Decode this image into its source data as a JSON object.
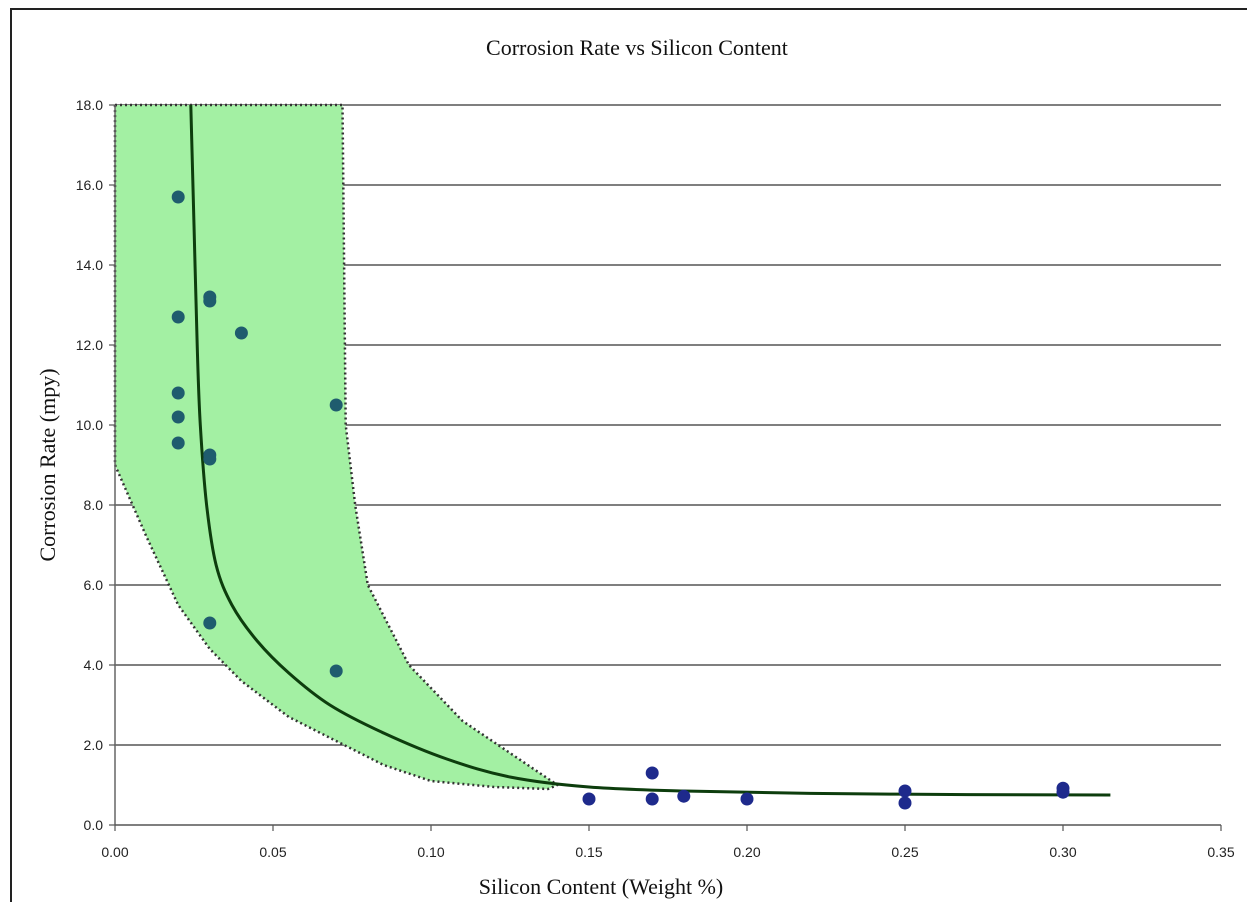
{
  "chart_data": {
    "type": "scatter",
    "title": "Corrosion Rate vs Silicon Content",
    "xlabel": "Silicon Content (Weight %)",
    "ylabel": "Corrosion Rate (mpy)",
    "xlim": [
      0,
      0.35
    ],
    "ylim": [
      0,
      18
    ],
    "x_ticks": [
      0.0,
      0.05,
      0.1,
      0.15,
      0.2,
      0.25,
      0.3,
      0.35
    ],
    "y_ticks": [
      0,
      2,
      4,
      6,
      8,
      10,
      12,
      14,
      16,
      18
    ],
    "x_tick_labels": [
      "0.00",
      "0.05",
      "0.10",
      "0.15",
      "0.20",
      "0.25",
      "0.30",
      "0.35"
    ],
    "y_tick_labels": [
      "0.0",
      "2.0",
      "4.0",
      "6.0",
      "8.0",
      "10.0",
      "12.0",
      "14.0",
      "16.0",
      "18.0"
    ],
    "grid": {
      "horizontal": true,
      "vertical": false
    },
    "colors": {
      "points_band": "#1f5c6e",
      "points_low": "#1e2a8c",
      "curve": "#0d3d0d",
      "band_fill": "#a3f0a3",
      "band_edge": "#333333",
      "gridline": "#555555"
    },
    "points": [
      {
        "x": 0.02,
        "y": 15.7
      },
      {
        "x": 0.02,
        "y": 12.7
      },
      {
        "x": 0.02,
        "y": 10.8
      },
      {
        "x": 0.02,
        "y": 10.2
      },
      {
        "x": 0.02,
        "y": 9.55
      },
      {
        "x": 0.03,
        "y": 13.2
      },
      {
        "x": 0.03,
        "y": 13.1
      },
      {
        "x": 0.03,
        "y": 9.25
      },
      {
        "x": 0.03,
        "y": 9.15
      },
      {
        "x": 0.03,
        "y": 5.05
      },
      {
        "x": 0.04,
        "y": 12.3
      },
      {
        "x": 0.07,
        "y": 10.5
      },
      {
        "x": 0.07,
        "y": 3.85
      },
      {
        "x": 0.15,
        "y": 0.65
      },
      {
        "x": 0.17,
        "y": 1.3
      },
      {
        "x": 0.17,
        "y": 0.65
      },
      {
        "x": 0.18,
        "y": 0.72
      },
      {
        "x": 0.2,
        "y": 0.65
      },
      {
        "x": 0.25,
        "y": 0.85
      },
      {
        "x": 0.25,
        "y": 0.55
      },
      {
        "x": 0.3,
        "y": 0.92
      },
      {
        "x": 0.3,
        "y": 0.82
      }
    ],
    "trend_curve": [
      {
        "x": 0.024,
        "y": 18.0
      },
      {
        "x": 0.025,
        "y": 15.0
      },
      {
        "x": 0.026,
        "y": 12.0
      },
      {
        "x": 0.027,
        "y": 10.0
      },
      {
        "x": 0.029,
        "y": 8.0
      },
      {
        "x": 0.032,
        "y": 6.5
      },
      {
        "x": 0.037,
        "y": 5.5
      },
      {
        "x": 0.045,
        "y": 4.6
      },
      {
        "x": 0.055,
        "y": 3.8
      },
      {
        "x": 0.068,
        "y": 3.0
      },
      {
        "x": 0.085,
        "y": 2.3
      },
      {
        "x": 0.105,
        "y": 1.65
      },
      {
        "x": 0.125,
        "y": 1.2
      },
      {
        "x": 0.15,
        "y": 0.95
      },
      {
        "x": 0.18,
        "y": 0.85
      },
      {
        "x": 0.22,
        "y": 0.79
      },
      {
        "x": 0.27,
        "y": 0.76
      },
      {
        "x": 0.315,
        "y": 0.75
      }
    ],
    "band_upper": [
      {
        "x": 0.0,
        "y": 18.0
      },
      {
        "x": 0.072,
        "y": 18.0
      },
      {
        "x": 0.073,
        "y": 10.0
      },
      {
        "x": 0.076,
        "y": 8.0
      },
      {
        "x": 0.08,
        "y": 6.0
      },
      {
        "x": 0.093,
        "y": 4.0
      },
      {
        "x": 0.11,
        "y": 2.6
      },
      {
        "x": 0.125,
        "y": 1.8
      },
      {
        "x": 0.14,
        "y": 1.0
      }
    ],
    "band_lower": [
      {
        "x": 0.137,
        "y": 0.9
      },
      {
        "x": 0.12,
        "y": 0.95
      },
      {
        "x": 0.1,
        "y": 1.1
      },
      {
        "x": 0.085,
        "y": 1.5
      },
      {
        "x": 0.07,
        "y": 2.1
      },
      {
        "x": 0.055,
        "y": 2.7
      },
      {
        "x": 0.04,
        "y": 3.6
      },
      {
        "x": 0.03,
        "y": 4.4
      },
      {
        "x": 0.02,
        "y": 5.5
      },
      {
        "x": 0.01,
        "y": 7.2
      },
      {
        "x": 0.0,
        "y": 9.0
      }
    ]
  }
}
